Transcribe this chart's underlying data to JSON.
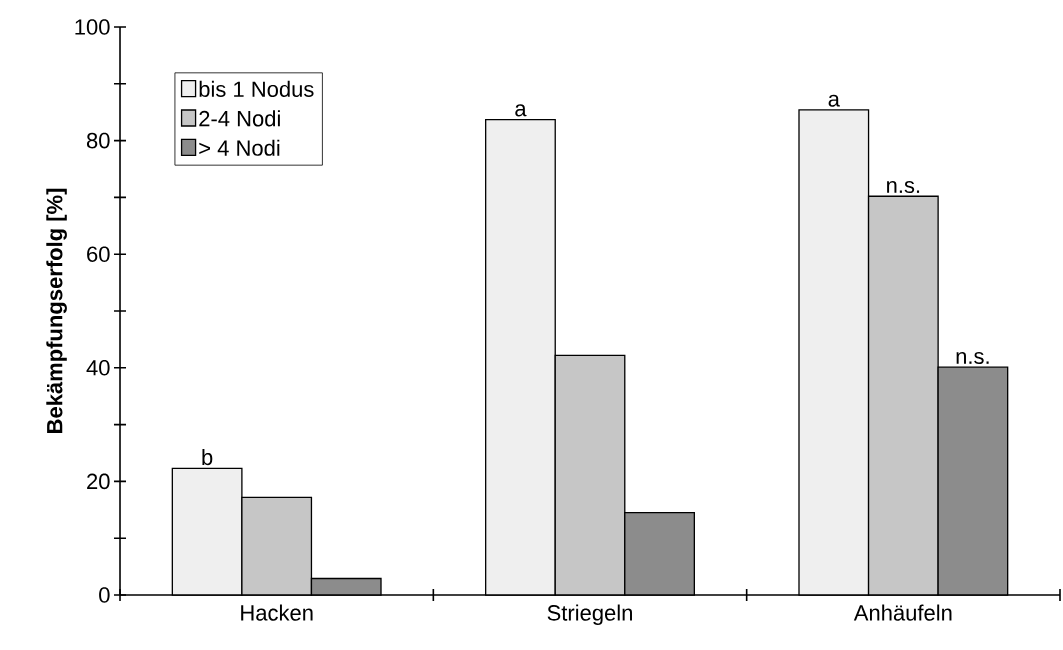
{
  "chart_data": {
    "type": "bar",
    "ylabel": "Bekämpfungserfolg [%]",
    "categories": [
      "Hacken",
      "Striegeln",
      "Anhäufeln"
    ],
    "series": [
      {
        "name": "bis 1 Nodus",
        "color": "#efefef",
        "values": [
          22.3,
          83.7,
          85.4
        ],
        "value_labels": [
          "b",
          "a",
          "a"
        ]
      },
      {
        "name": "2-4 Nodi",
        "color": "#c6c6c6",
        "values": [
          17.2,
          42.2,
          70.2
        ],
        "value_labels": [
          null,
          null,
          "n.s."
        ]
      },
      {
        "name": "> 4 Nodi",
        "color": "#8c8c8c",
        "values": [
          2.9,
          14.5,
          40.1
        ],
        "value_labels": [
          null,
          null,
          "n.s."
        ]
      }
    ],
    "ylim": [
      0,
      100
    ],
    "yticks": [
      0,
      {
        "value": 10,
        "label": null
      },
      20,
      {
        "value": 30,
        "label": null
      },
      40,
      {
        "value": 50,
        "label": null
      },
      60,
      {
        "value": 70,
        "label": null
      },
      80,
      {
        "value": 90,
        "label": null
      },
      100
    ],
    "legend": "top left",
    "grid": false
  }
}
